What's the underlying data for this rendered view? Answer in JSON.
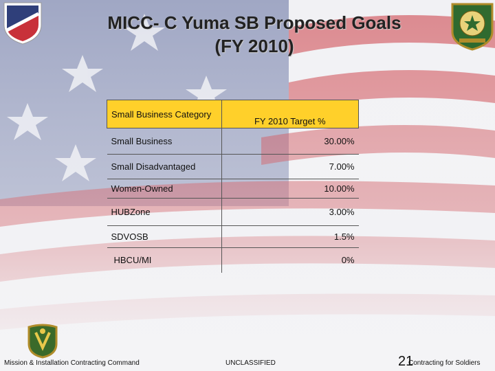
{
  "slide": {
    "title_line1": "MICC- C Yuma SB  Proposed Goals",
    "title_line2": "(FY 2010)"
  },
  "table": {
    "header": {
      "category": "Small Business Category",
      "target": "FY 2010 Target %"
    },
    "rows": [
      {
        "category": "Small Business",
        "target": "30.00%"
      },
      {
        "category": "Small Disadvantaged",
        "target": "7.00%"
      },
      {
        "category": "Women-Owned",
        "target": "10.00%"
      },
      {
        "category": "HUBZone",
        "target": "3.00%"
      },
      {
        "category": "SDVOSB",
        "target": "1.5%"
      },
      {
        "category": "HBCU/MI",
        "target": "0%"
      }
    ]
  },
  "footer": {
    "left": "Mission & Installation Contracting Command",
    "center": "UNCLASSIFIED",
    "page_number": "21",
    "right": "Contracting for Soldiers"
  },
  "colors": {
    "header_fill": "#ffd02a",
    "flag_red": "#c8313a",
    "flag_blue": "#2f3f7a"
  },
  "icons": [
    "army-shield-logo",
    "contracting-seal-logo",
    "command-insignia-logo"
  ]
}
